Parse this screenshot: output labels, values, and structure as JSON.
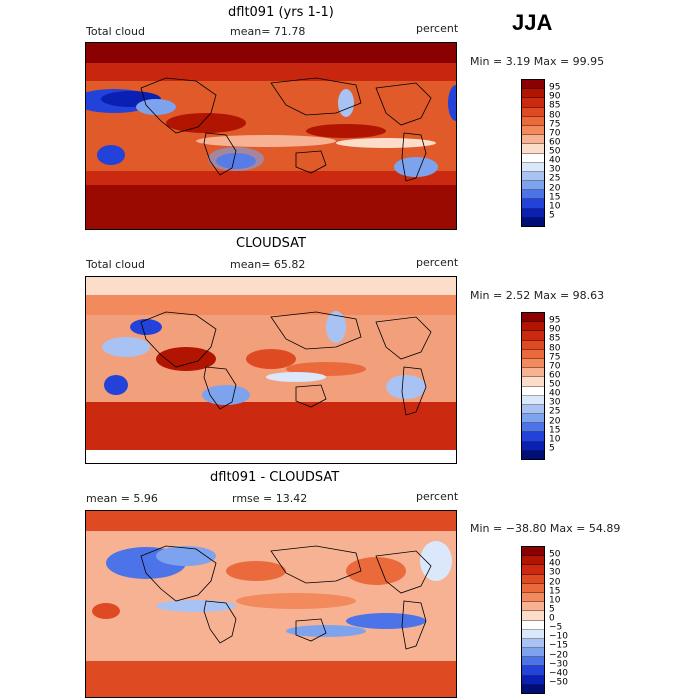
{
  "season": "JJA",
  "panels": [
    {
      "title": "dflt091 (yrs 1-1)",
      "left": "Total cloud",
      "center": "mean=  71.78",
      "right": "percent",
      "minmax": "Min =   3.19 Max =  99.95",
      "colorbar": {
        "labels": [
          "95",
          "90",
          "85",
          "80",
          "75",
          "70",
          "60",
          "50",
          "40",
          "30",
          "25",
          "20",
          "15",
          "10",
          "5"
        ],
        "colors": [
          "#8b0000",
          "#b11400",
          "#cc2a10",
          "#de4a22",
          "#ea6a3c",
          "#f28a5e",
          "#f7b293",
          "#fbddc9",
          "#ffffff",
          "#dbe7fb",
          "#a8c3f3",
          "#7da3ee",
          "#4c74e8",
          "#2242d9",
          "#0a20b2",
          "#000f78"
        ]
      }
    },
    {
      "title": "CLOUDSAT",
      "left": "Total cloud",
      "center": "mean=  65.82",
      "right": "percent",
      "minmax": "Min =   2.52 Max =  98.63",
      "colorbar": {
        "labels": [
          "95",
          "90",
          "85",
          "80",
          "75",
          "70",
          "60",
          "50",
          "40",
          "30",
          "25",
          "20",
          "15",
          "10",
          "5"
        ],
        "colors": [
          "#8b0000",
          "#b11400",
          "#cc2a10",
          "#de4a22",
          "#ea6a3c",
          "#f28a5e",
          "#f7b293",
          "#fbddc9",
          "#ffffff",
          "#dbe7fb",
          "#a8c3f3",
          "#7da3ee",
          "#4c74e8",
          "#2242d9",
          "#0a20b2",
          "#000f78"
        ]
      }
    },
    {
      "title": "dflt091 - CLOUDSAT",
      "left": "mean =    5.96",
      "center": "rmse =   13.42",
      "right": "percent",
      "minmax": "Min = −38.80 Max =  54.89",
      "colorbar": {
        "labels": [
          "50",
          "40",
          "30",
          "20",
          "15",
          "10",
          "5",
          "0",
          "−5",
          "−10",
          "−15",
          "−20",
          "−30",
          "−40",
          "−50"
        ],
        "colors": [
          "#8b0000",
          "#b11400",
          "#cc2a10",
          "#de4a22",
          "#ea6a3c",
          "#f28a5e",
          "#f7b293",
          "#fbddc9",
          "#ffffff",
          "#dbe7fb",
          "#a8c3f3",
          "#7da3ee",
          "#4c74e8",
          "#2242d9",
          "#0a20b2",
          "#000f78"
        ]
      }
    }
  ]
}
